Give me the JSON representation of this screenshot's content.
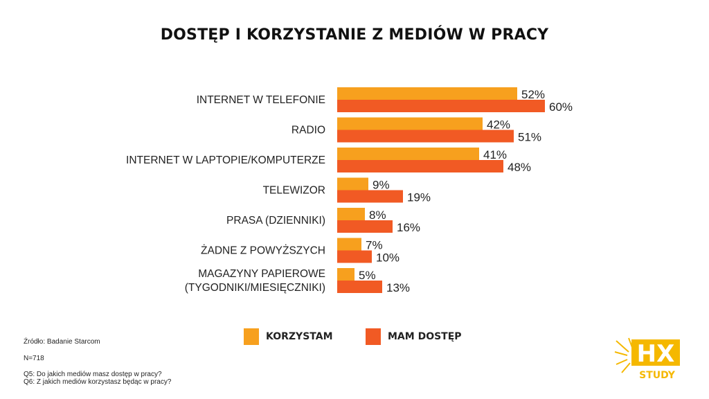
{
  "chart_data": {
    "type": "bar",
    "orientation": "horizontal",
    "title": "DOSTĘP I KORZYSTANIE Z MEDIÓW W PRACY",
    "categories": [
      [
        "INTERNET W TELEFONIE"
      ],
      [
        "RADIO"
      ],
      [
        "INTERNET W LAPTOPIE/KOMPUTERZE"
      ],
      [
        "TELEWIZOR"
      ],
      [
        "PRASA (DZIENNIKI)"
      ],
      [
        "ŻADNE Z POWYŻSZYCH"
      ],
      [
        "MAGAZYNY PAPIEROWE",
        "(TYGODNIKI/MIESIĘCZNIKI)"
      ]
    ],
    "series": [
      {
        "name": "KORZYSTAM",
        "color": "#F7A01E",
        "values": [
          52,
          42,
          41,
          9,
          8,
          7,
          5
        ]
      },
      {
        "name": "MAM DOSTĘP",
        "color": "#F15A24",
        "values": [
          60,
          51,
          48,
          19,
          16,
          10,
          13
        ]
      }
    ],
    "value_suffix": "%",
    "xlim": [
      0,
      100
    ],
    "grid": false,
    "legend_position": "bottom-center"
  },
  "footnotes": {
    "source": "Źródło: Badanie Starcom",
    "sample": "N=718",
    "q5": "Q5: Do jakich mediów masz dostęp w pracy?",
    "q6": "Q6: Z jakich mediów korzystasz będąc w pracy?"
  },
  "logo": {
    "mark": "HX",
    "word": "STUDY",
    "color": "#F5B800"
  }
}
